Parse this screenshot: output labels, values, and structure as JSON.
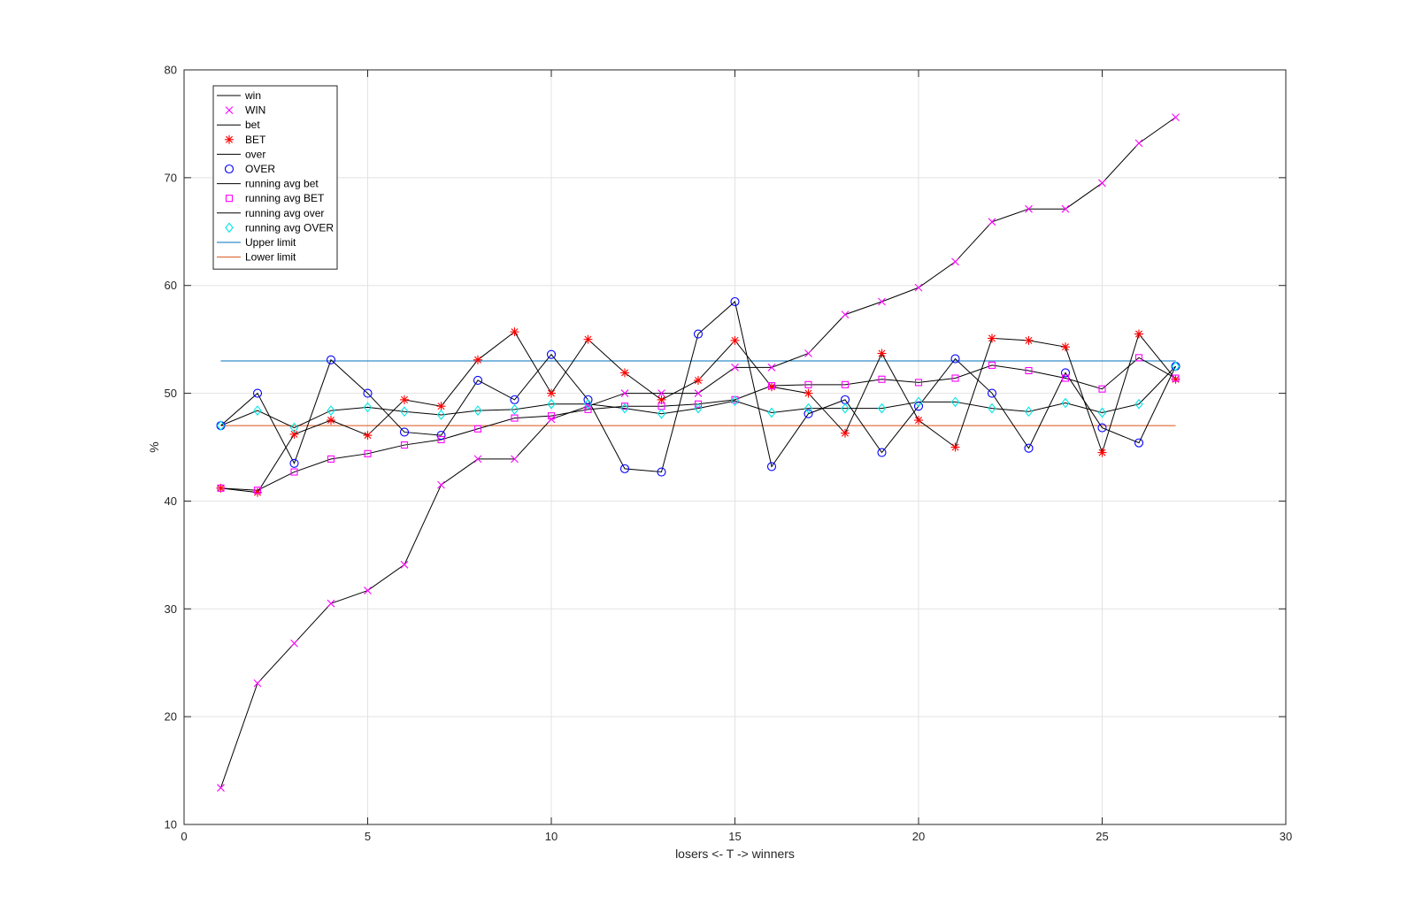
{
  "chart_data": {
    "type": "line",
    "title": "",
    "xlabel": "losers <- T -> winners",
    "ylabel": "%",
    "xlim": [
      0,
      30
    ],
    "ylim": [
      10,
      80
    ],
    "xticks": [
      0,
      5,
      10,
      15,
      20,
      25,
      30
    ],
    "yticks": [
      10,
      20,
      30,
      40,
      50,
      60,
      70,
      80
    ],
    "grid": true,
    "legend_position": "top-left",
    "x": [
      1,
      2,
      3,
      4,
      5,
      6,
      7,
      8,
      9,
      10,
      11,
      12,
      13,
      14,
      15,
      16,
      17,
      18,
      19,
      20,
      21,
      22,
      23,
      24,
      25,
      26,
      27
    ],
    "series": [
      {
        "name": "win",
        "line_color": "#000000",
        "marker": "none",
        "values": [
          13.4,
          23.1,
          26.8,
          30.5,
          31.7,
          34.1,
          41.5,
          43.9,
          43.9,
          47.6,
          48.8,
          50,
          50,
          50,
          52.4,
          52.4,
          53.7,
          57.3,
          58.5,
          59.8,
          62.2,
          65.9,
          67.1,
          67.1,
          69.5,
          73.2,
          75.6
        ]
      },
      {
        "name": "WIN",
        "marker": "x",
        "marker_color": "#ff00ff",
        "values": [
          13.4,
          23.1,
          26.8,
          30.5,
          31.7,
          34.1,
          41.5,
          43.9,
          43.9,
          47.6,
          48.8,
          50,
          50,
          50,
          52.4,
          52.4,
          53.7,
          57.3,
          58.5,
          59.8,
          62.2,
          65.9,
          67.1,
          67.1,
          69.5,
          73.2,
          75.6
        ]
      },
      {
        "name": "bet",
        "line_color": "#000000",
        "marker": "none",
        "values": [
          41.2,
          40.8,
          46.2,
          47.5,
          46.1,
          49.4,
          48.8,
          53.1,
          55.7,
          50,
          55,
          51.9,
          49.4,
          51.2,
          54.9,
          50.6,
          50,
          46.3,
          53.7,
          47.5,
          45,
          55.1,
          54.9,
          54.3,
          44.5,
          55.5,
          51.3
        ]
      },
      {
        "name": "BET",
        "marker": "*",
        "marker_color": "#ff0000",
        "values": [
          41.2,
          40.8,
          46.2,
          47.5,
          46.1,
          49.4,
          48.8,
          53.1,
          55.7,
          50,
          55,
          51.9,
          49.4,
          51.2,
          54.9,
          50.6,
          50,
          46.3,
          53.7,
          47.5,
          45,
          55.1,
          54.9,
          54.3,
          44.5,
          55.5,
          51.3
        ]
      },
      {
        "name": "over",
        "line_color": "#000000",
        "marker": "none",
        "values": [
          47,
          50,
          43.5,
          53.1,
          50,
          46.4,
          46.1,
          51.2,
          49.4,
          53.6,
          49.4,
          43,
          42.7,
          55.5,
          58.5,
          43.2,
          48.1,
          49.4,
          44.5,
          48.8,
          53.2,
          50,
          44.9,
          51.9,
          46.8,
          45.4,
          52.5
        ]
      },
      {
        "name": "OVER",
        "marker": "o",
        "marker_color": "#0000ff",
        "values": [
          47,
          50,
          43.5,
          53.1,
          50,
          46.4,
          46.1,
          51.2,
          49.4,
          53.6,
          49.4,
          43,
          42.7,
          55.5,
          58.5,
          43.2,
          48.1,
          49.4,
          44.5,
          48.8,
          53.2,
          50,
          44.9,
          51.9,
          46.8,
          45.4,
          52.5
        ]
      },
      {
        "name": "running avg bet",
        "line_color": "#000000",
        "marker": "none",
        "values": [
          41.2,
          41,
          42.7,
          43.9,
          44.4,
          45.2,
          45.7,
          46.7,
          47.7,
          47.9,
          48.5,
          48.8,
          48.8,
          49,
          49.4,
          50.7,
          50.8,
          50.8,
          51.3,
          51,
          51.4,
          52.6,
          52.1,
          51.4,
          50.4,
          53.3,
          51.4
        ]
      },
      {
        "name": "running avg BET",
        "marker": "square",
        "marker_color": "#ff00ff",
        "values": [
          41.2,
          41,
          42.7,
          43.9,
          44.4,
          45.2,
          45.7,
          46.7,
          47.7,
          47.9,
          48.5,
          48.8,
          48.8,
          49,
          49.4,
          50.7,
          50.8,
          50.8,
          51.3,
          51,
          51.4,
          52.6,
          52.1,
          51.4,
          50.4,
          53.3,
          51.4
        ]
      },
      {
        "name": "running avg over",
        "line_color": "#000000",
        "marker": "none",
        "values": [
          47,
          48.4,
          46.8,
          48.4,
          48.7,
          48.3,
          48,
          48.4,
          48.5,
          49,
          49,
          48.6,
          48.1,
          48.6,
          49.3,
          48.2,
          48.6,
          48.6,
          48.6,
          49.2,
          49.2,
          48.6,
          48.3,
          49.1,
          48.2,
          49,
          52.5
        ]
      },
      {
        "name": "running avg OVER",
        "marker": "diamond",
        "marker_color": "#00e5e5",
        "values": [
          47,
          48.4,
          46.8,
          48.4,
          48.7,
          48.3,
          48,
          48.4,
          48.5,
          49,
          49,
          48.6,
          48.1,
          48.6,
          49.3,
          48.2,
          48.6,
          48.6,
          48.6,
          49.2,
          49.2,
          48.6,
          48.3,
          49.1,
          48.2,
          49,
          52.5
        ]
      },
      {
        "name": "Upper limit",
        "line_color": "#0072bd",
        "marker": "none",
        "values": [
          53,
          53,
          53,
          53,
          53,
          53,
          53,
          53,
          53,
          53,
          53,
          53,
          53,
          53,
          53,
          53,
          53,
          53,
          53,
          53,
          53,
          53,
          53,
          53,
          53,
          53,
          53
        ]
      },
      {
        "name": "Lower limit",
        "line_color": "#d95319",
        "marker": "none",
        "values": [
          47,
          47,
          47,
          47,
          47,
          47,
          47,
          47,
          47,
          47,
          47,
          47,
          47,
          47,
          47,
          47,
          47,
          47,
          47,
          47,
          47,
          47,
          47,
          47,
          47,
          47,
          47
        ]
      }
    ]
  }
}
